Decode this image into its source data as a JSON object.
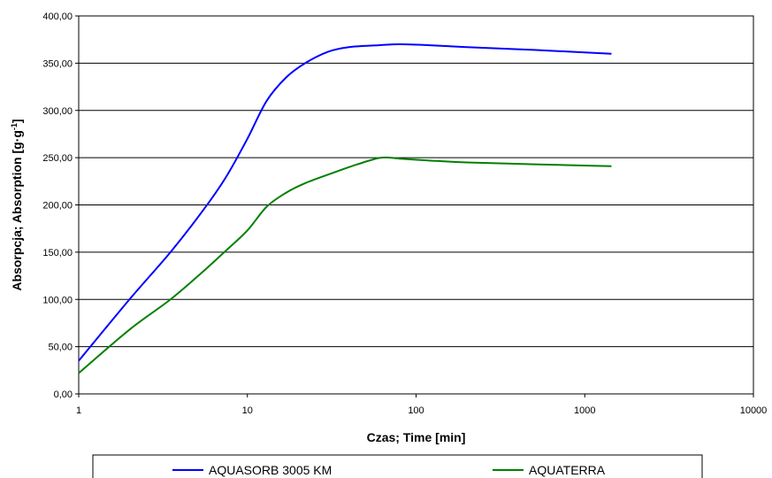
{
  "chart_data": {
    "type": "line",
    "title": "",
    "xlabel": "Czas; Time [min]",
    "ylabel_main": "Absorpcja; Absorption [g·g",
    "ylabel_sup": "-1",
    "ylabel_end": "]",
    "x_scale": "log",
    "xlim": [
      1,
      10000
    ],
    "ylim": [
      0,
      400
    ],
    "x_ticks": [
      "1",
      "10",
      "100",
      "1000",
      "10000"
    ],
    "x_tick_values": [
      1,
      10,
      100,
      1000,
      10000
    ],
    "y_ticks": [
      "0,00",
      "50,00",
      "100,00",
      "150,00",
      "200,00",
      "250,00",
      "300,00",
      "350,00",
      "400,00"
    ],
    "y_tick_values": [
      0,
      50,
      100,
      150,
      200,
      250,
      300,
      350,
      400
    ],
    "grid": "horizontal",
    "legend_position": "bottom",
    "series": [
      {
        "name": "AQUASORB 3005 KM",
        "color": "#0000ff",
        "x": [
          1,
          2,
          3.5,
          5.5,
          7.5,
          10,
          13,
          17,
          22,
          30,
          40,
          60,
          80,
          120,
          200,
          500,
          1440
        ],
        "y": [
          35,
          100,
          150,
          195,
          230,
          270,
          310,
          335,
          350,
          362,
          367,
          369,
          370,
          369,
          367,
          364,
          360
        ]
      },
      {
        "name": "AQUATERRA",
        "color": "#008000",
        "x": [
          1,
          2,
          3.5,
          5.5,
          7.5,
          10,
          13,
          17,
          22,
          30,
          45,
          62,
          80,
          120,
          200,
          500,
          1440
        ],
        "y": [
          22,
          68,
          100,
          130,
          152,
          173,
          198,
          213,
          223,
          232,
          243,
          250,
          249,
          247,
          245,
          243,
          241
        ]
      }
    ]
  }
}
